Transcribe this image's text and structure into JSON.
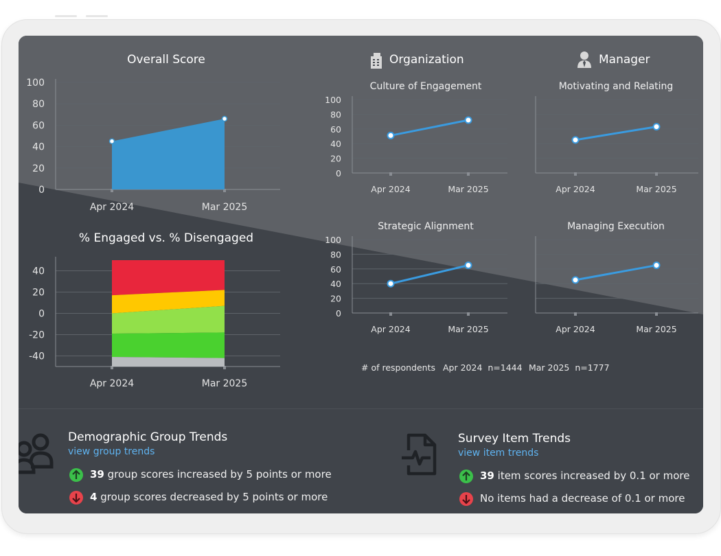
{
  "overall": {
    "title": "Overall Score",
    "chart_data": {
      "type": "area",
      "title": "Overall Score",
      "categories": [
        "Apr 2024",
        "Mar 2025"
      ],
      "series": [
        {
          "values": [
            45,
            66
          ]
        }
      ],
      "ylim": [
        0,
        100
      ],
      "yticks": [
        0,
        20,
        40,
        60,
        80,
        100
      ],
      "color": "#3a96cf"
    }
  },
  "engagement": {
    "title": "% Engaged vs. % Disengaged",
    "chart_data": {
      "type": "area",
      "title": "% Engaged vs. % Disengaged",
      "categories": [
        "Apr 2024",
        "Mar 2025"
      ],
      "stacked_bands": [
        {
          "color": "#e8263c",
          "values": [
            [
              50,
              17
            ],
            [
              50,
              22
            ]
          ]
        },
        {
          "color": "#ffc800",
          "values": [
            [
              17,
              0
            ],
            [
              22,
              7
            ]
          ]
        },
        {
          "color": "#92e04a",
          "values": [
            [
              0,
              -19
            ],
            [
              7,
              -18
            ]
          ]
        },
        {
          "color": "#4ad12f",
          "values": [
            [
              -19,
              -41
            ],
            [
              -18,
              -42
            ]
          ]
        },
        {
          "color": "#b9bcbf",
          "values": [
            [
              -41,
              -50
            ],
            [
              -42,
              -50
            ]
          ]
        }
      ],
      "ylim": [
        -50,
        50
      ],
      "yticks": [
        -40,
        -20,
        0,
        20,
        40
      ]
    }
  },
  "organization": {
    "header": "Organization",
    "icon": "building-icon",
    "charts": [
      {
        "title": "Culture of Engagement",
        "chart_data": {
          "type": "line",
          "title": "Culture of Engagement",
          "categories": [
            "Apr 2024",
            "Mar 2025"
          ],
          "values": [
            51,
            72
          ],
          "ylim": [
            0,
            100
          ],
          "yticks": [
            0,
            20,
            40,
            60,
            80,
            100
          ]
        }
      },
      {
        "title": "Strategic Alignment",
        "chart_data": {
          "type": "line",
          "title": "Strategic Alignment",
          "categories": [
            "Apr 2024",
            "Mar 2025"
          ],
          "values": [
            40,
            65
          ],
          "ylim": [
            0,
            100
          ],
          "yticks": [
            0,
            20,
            40,
            60,
            80,
            100
          ]
        }
      }
    ]
  },
  "manager": {
    "header": "Manager",
    "icon": "manager-icon",
    "charts": [
      {
        "title": "Motivating and Relating",
        "chart_data": {
          "type": "line",
          "title": "Motivating and Relating",
          "categories": [
            "Apr 2024",
            "Mar 2025"
          ],
          "values": [
            45,
            63
          ],
          "ylim": [
            0,
            100
          ]
        }
      },
      {
        "title": "Managing Execution",
        "chart_data": {
          "type": "line",
          "title": "Managing Execution",
          "categories": [
            "Apr 2024",
            "Mar 2025"
          ],
          "values": [
            45,
            65
          ],
          "ylim": [
            0,
            100
          ]
        }
      }
    ]
  },
  "respondents": {
    "label": "# of respondents",
    "items": [
      "Apr 2024  n=1444",
      "Mar 2025  n=1777"
    ]
  },
  "demographic": {
    "title": "Demographic Group Trends",
    "link": "view group trends",
    "icon": "people-group-icon",
    "up_count": "39",
    "up_text": "group scores increased by 5 points or more",
    "down_count": "4",
    "down_text": "group scores decreased by 5 points or more"
  },
  "survey": {
    "title": "Survey Item Trends",
    "link": "view item trends",
    "icon": "document-pulse-icon",
    "up_count": "39",
    "up_text": "item scores increased by 0.1 or more",
    "down_text": "No items had a decrease of 0.1 or more"
  },
  "colors": {
    "line": "#3a9be0",
    "up": "#3bbf4a",
    "down": "#e8434b",
    "link": "#5fb3f0"
  }
}
